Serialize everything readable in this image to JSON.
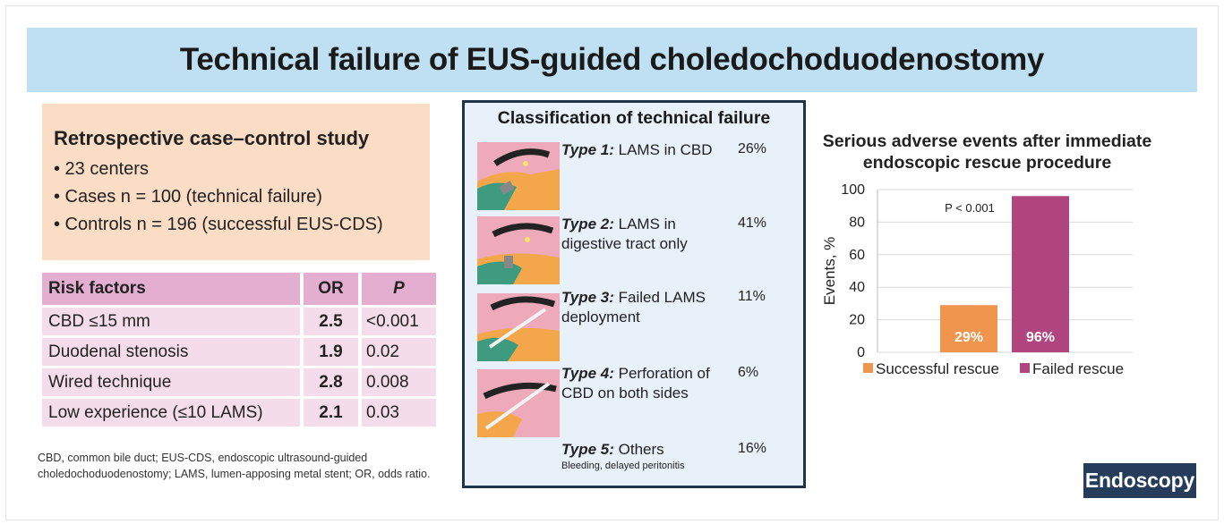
{
  "title": "Technical failure of EUS-guided choledochoduodenostomy",
  "study": {
    "title": "Retrospective case–control study",
    "bullets": [
      "• 23 centers",
      "• Cases n = 100 (technical failure)",
      "• Controls n = 196 (successful EUS-CDS)"
    ]
  },
  "risk_table": {
    "headers": [
      "Risk factors",
      "OR",
      "P"
    ],
    "rows": [
      [
        "CBD ≤15 mm",
        "2.5",
        "<0.001"
      ],
      [
        "Duodenal stenosis",
        "1.9",
        "0.02"
      ],
      [
        "Wired technique",
        "2.8",
        "0.008"
      ],
      [
        "Low experience (≤10 LAMS)",
        "2.1",
        "0.03"
      ]
    ]
  },
  "footnote": "CBD, common bile duct; EUS-CDS, endoscopic ultrasound-guided choledochoduodenostomy; LAMS, lumen-apposing metal stent; OR, odds ratio.",
  "classification": {
    "title": "Classification of technical failure",
    "types": [
      {
        "label": "Type 1:",
        "desc": "LAMS in CBD",
        "note": "",
        "pct": "26%"
      },
      {
        "label": "Type 2:",
        "desc": "LAMS in digestive tract only",
        "note": "",
        "pct": "41%"
      },
      {
        "label": "Type 3:",
        "desc": "Failed LAMS deployment",
        "note": "",
        "pct": "11%"
      },
      {
        "label": "Type 4:",
        "desc": "Perforation of CBD on both sides",
        "note": "",
        "pct": "6%"
      },
      {
        "label": "Type 5:",
        "desc": "Others",
        "note": "Bleeding, delayed peritonitis",
        "pct": "16%"
      }
    ]
  },
  "chart_data": {
    "type": "bar",
    "title": "Serious adverse events after immediate endoscopic rescue procedure",
    "ylabel": "Events, %",
    "xlabel": "",
    "ylim": [
      0,
      100
    ],
    "yticks": [
      0,
      20,
      40,
      60,
      80,
      100
    ],
    "categories": [
      "Successful rescue",
      "Failed rescue"
    ],
    "values": [
      29,
      96
    ],
    "data_labels": [
      "29%",
      "96%"
    ],
    "colors": [
      "#f0954d",
      "#b0457f"
    ],
    "annotation": "P < 0.001",
    "grid": true,
    "legend": "bottom"
  },
  "logo": "Endoscopy"
}
